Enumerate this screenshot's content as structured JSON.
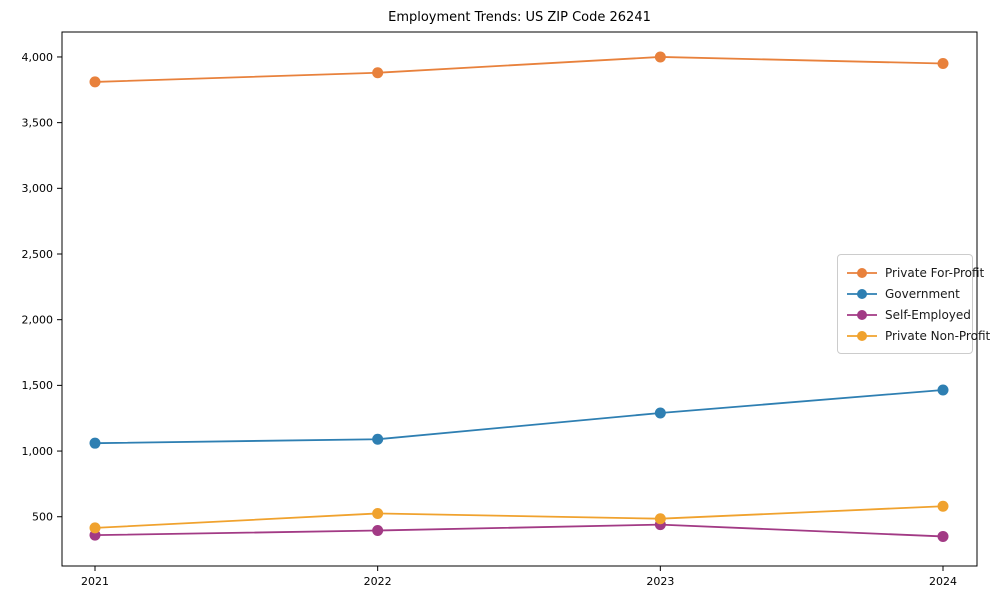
{
  "title": "Employment Trends: US ZIP Code 26241",
  "chart_data": {
    "type": "line",
    "title": "Employment Trends: US ZIP Code 26241",
    "xlabel": "",
    "ylabel": "",
    "categories": [
      "2021",
      "2022",
      "2023",
      "2024"
    ],
    "series": [
      {
        "name": "Private For-Profit",
        "color": "#e8813c",
        "values": [
          3810,
          3880,
          4000,
          3950
        ]
      },
      {
        "name": "Government",
        "color": "#2e7fb2",
        "values": [
          1060,
          1090,
          1290,
          1465
        ]
      },
      {
        "name": "Self-Employed",
        "color": "#a23a85",
        "values": [
          360,
          395,
          440,
          350
        ]
      },
      {
        "name": "Private Non-Profit",
        "color": "#f0a22e",
        "values": [
          415,
          525,
          485,
          580
        ]
      }
    ],
    "yticks": [
      500,
      1000,
      1500,
      2000,
      2500,
      3000,
      3500,
      4000
    ],
    "ylim": [
      125,
      4190
    ],
    "grid": false,
    "legend_position": "center-right",
    "marker": "circle",
    "line_width": 1.8,
    "marker_radius": 5.5,
    "frame_color": "#000000"
  }
}
